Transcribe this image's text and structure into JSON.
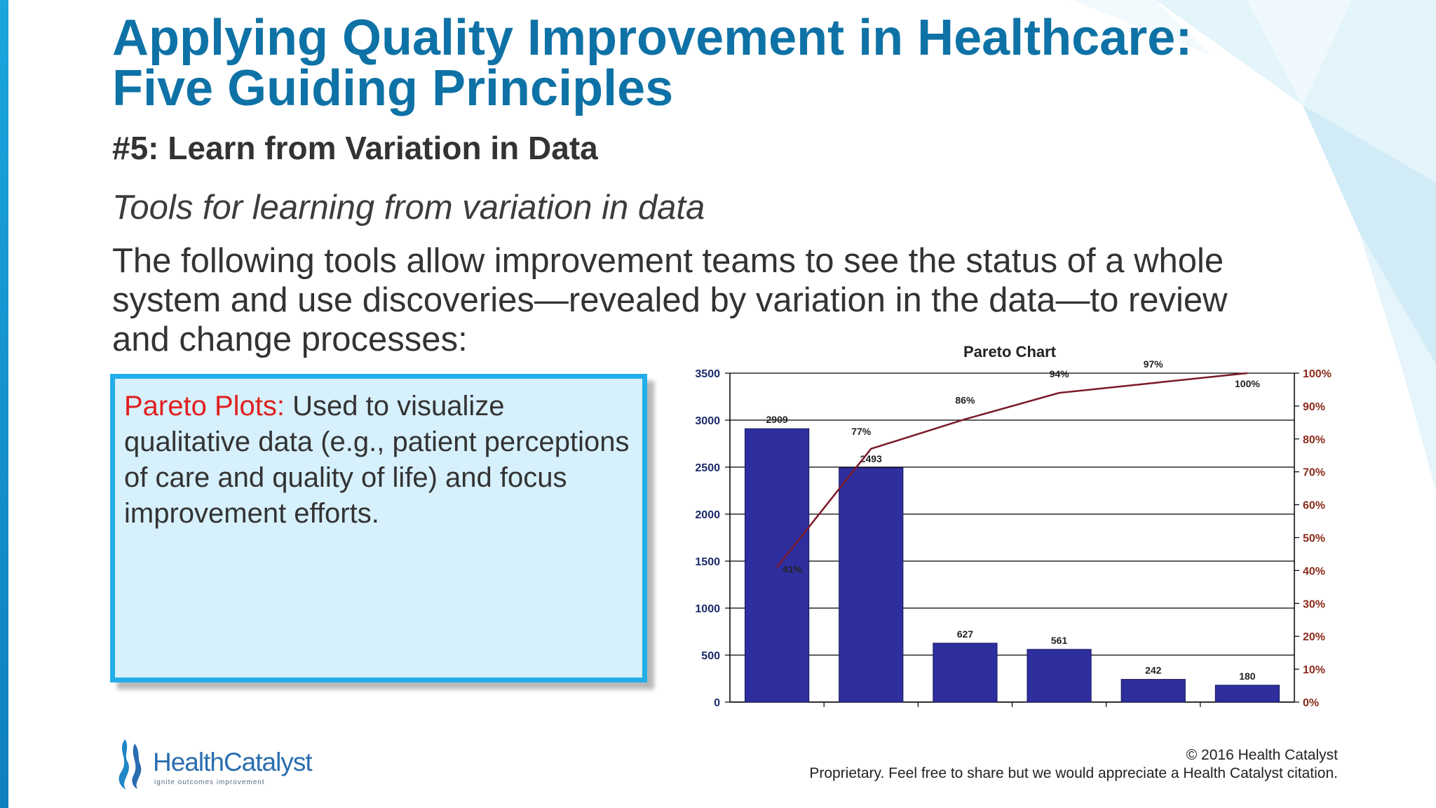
{
  "header": {
    "title_line1": "Applying Quality Improvement in Healthcare:",
    "title_line2": "Five Guiding Principles",
    "subtitle": "#5: Learn from Variation in Data"
  },
  "body": {
    "tools_heading": "Tools for learning from variation in data",
    "intro_lines": [
      "The following tools allow improvement teams to see the status of a whole",
      "system and use discoveries—revealed by variation in the data—to review",
      "and change processes:"
    ]
  },
  "callout": {
    "term": "Pareto Plots:",
    "description": " Used to visualize qualitative data (e.g., patient perceptions of care and quality of life) and focus improvement efforts."
  },
  "chart_data": {
    "type": "bar",
    "title": "Pareto Chart",
    "xlabel": "",
    "ylabel": "",
    "ylim": [
      0,
      3500
    ],
    "y2lim": [
      0,
      100
    ],
    "y_ticks": [
      "0",
      "500",
      "1000",
      "1500",
      "2000",
      "2500",
      "3000",
      "3500"
    ],
    "y2_ticks": [
      "0%",
      "10%",
      "20%",
      "30%",
      "40%",
      "50%",
      "60%",
      "70%",
      "80%",
      "90%",
      "100%"
    ],
    "values": [
      2909,
      2493,
      627,
      561,
      242,
      180
    ],
    "value_labels": [
      "2909",
      "2493",
      "627",
      "561",
      "242",
      "180"
    ],
    "cumulative_percent": [
      41,
      77,
      86,
      94,
      97,
      100
    ],
    "cumulative_labels": [
      "41%",
      "77%",
      "86%",
      "94%",
      "97%",
      "100%"
    ],
    "grid": true,
    "bar_color": "#2e2e9e",
    "line_color": "#7a1a2a",
    "right_axis_label_color": "#8b2a1a"
  },
  "footer": {
    "logo_health": "Health",
    "logo_catalyst": "Catalyst",
    "logo_tagline": "ignite outcomes improvement",
    "copyright": "© 2016 Health Catalyst",
    "notice": "Proprietary. Feel free to share but we would appreciate a Health Catalyst citation."
  },
  "colors": {
    "title": "#0e72a6",
    "accent": "#22aee8",
    "callout_bg": "#d6f0fc",
    "term": "#e02020"
  }
}
